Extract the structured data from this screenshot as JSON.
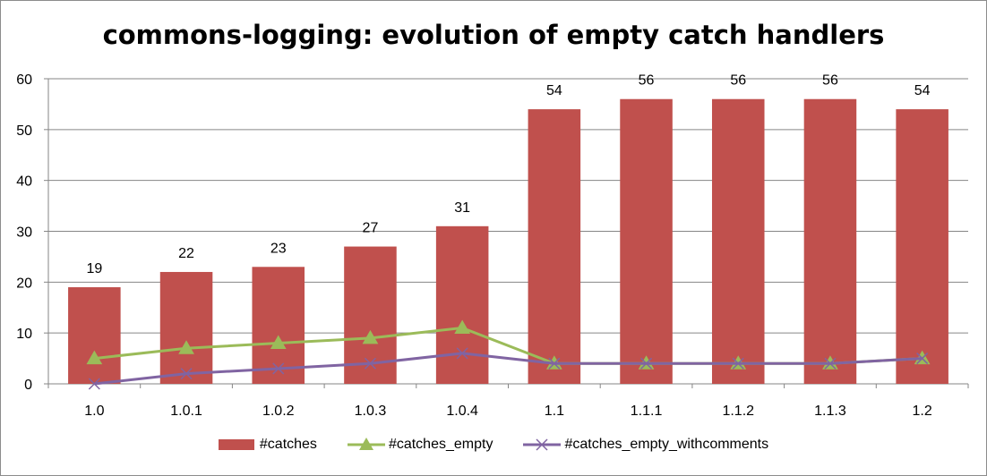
{
  "chart_data": {
    "type": "bar",
    "title": "commons-logging: evolution of empty catch handlers",
    "categories": [
      "1.0",
      "1.0.1",
      "1.0.2",
      "1.0.3",
      "1.0.4",
      "1.1",
      "1.1.1",
      "1.1.2",
      "1.1.3",
      "1.2"
    ],
    "ylim": [
      0,
      60
    ],
    "yticks": [
      0,
      10,
      20,
      30,
      40,
      50,
      60
    ],
    "grid": true,
    "legend_position": "bottom",
    "series": [
      {
        "name": "#catches",
        "type": "bar",
        "color": "#c0504d",
        "values": [
          19,
          22,
          23,
          27,
          31,
          54,
          56,
          56,
          56,
          54
        ],
        "data_labels": [
          "19",
          "22",
          "23",
          "27",
          "31",
          "54",
          "56",
          "56",
          "56",
          "54"
        ]
      },
      {
        "name": "#catches_empty",
        "type": "line",
        "marker": "triangle",
        "color": "#9bbb59",
        "values": [
          5,
          7,
          8,
          9,
          11,
          4,
          4,
          4,
          4,
          5
        ]
      },
      {
        "name": "#catches_empty_withcomments",
        "type": "line",
        "marker": "x",
        "color": "#8064a2",
        "values": [
          0,
          2,
          3,
          4,
          6,
          4,
          4,
          4,
          4,
          5
        ]
      }
    ]
  }
}
